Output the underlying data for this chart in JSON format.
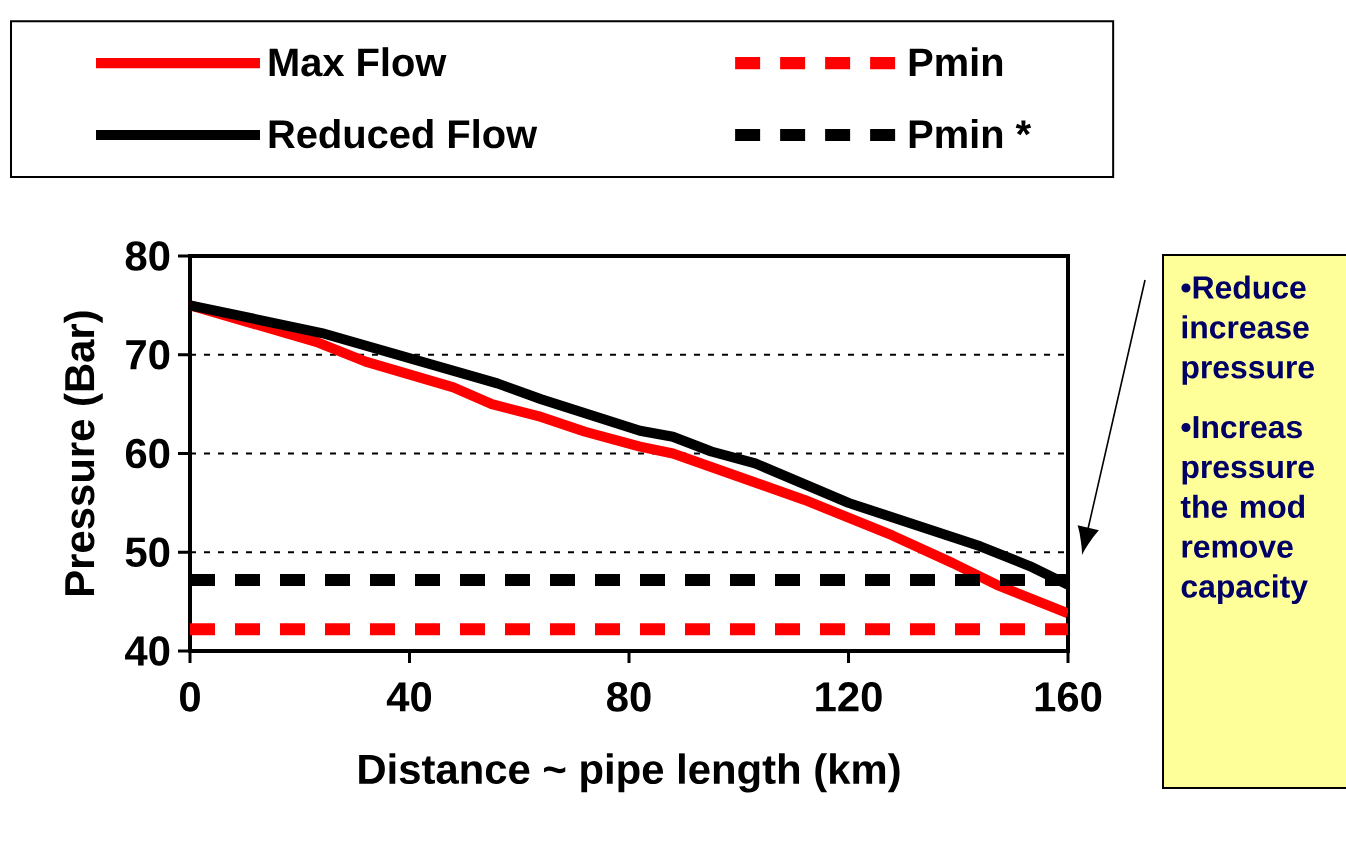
{
  "chart_data": {
    "type": "line",
    "xlabel": "Distance ~ pipe length (km)",
    "ylabel": "Pressure (Bar)",
    "xlim": [
      0,
      160
    ],
    "xticks": [
      0,
      40,
      80,
      120,
      160
    ],
    "ylim": [
      40,
      80
    ],
    "yticks": [
      40,
      50,
      60,
      70,
      80
    ],
    "grid": "y",
    "legend": "top",
    "series": [
      {
        "name": "Max Flow",
        "color": "#ff0000",
        "line_style": "solid",
        "x": [
          0,
          23,
          32,
          48,
          55,
          64,
          72,
          82,
          88,
          112,
          128,
          139,
          147,
          160
        ],
        "values": [
          75,
          71.3,
          69.3,
          66.7,
          65.0,
          63.7,
          62.2,
          60.7,
          60.0,
          55.3,
          51.7,
          48.9,
          46.7,
          43.8
        ]
      },
      {
        "name": "Pmin",
        "color": "#ff0000",
        "line_style": "dashed",
        "x": [
          0,
          160
        ],
        "values": [
          42.2,
          42.2
        ]
      },
      {
        "name": "Reduced Flow",
        "color": "#000000",
        "line_style": "solid",
        "x": [
          0,
          24,
          56,
          64,
          82,
          88,
          95,
          103,
          120,
          144,
          153,
          160
        ],
        "values": [
          75,
          72.2,
          67.1,
          65.5,
          62.3,
          61.7,
          60.2,
          59.0,
          55.0,
          50.6,
          48.6,
          46.7
        ]
      },
      {
        "name": "Pmin *",
        "color": "#000000",
        "line_style": "dashed",
        "x": [
          0,
          160
        ],
        "values": [
          47.2,
          47.2
        ]
      }
    ],
    "annotations": [
      "•Reduce increase pressure",
      "•Increas pressure the mod remove capacity"
    ]
  }
}
